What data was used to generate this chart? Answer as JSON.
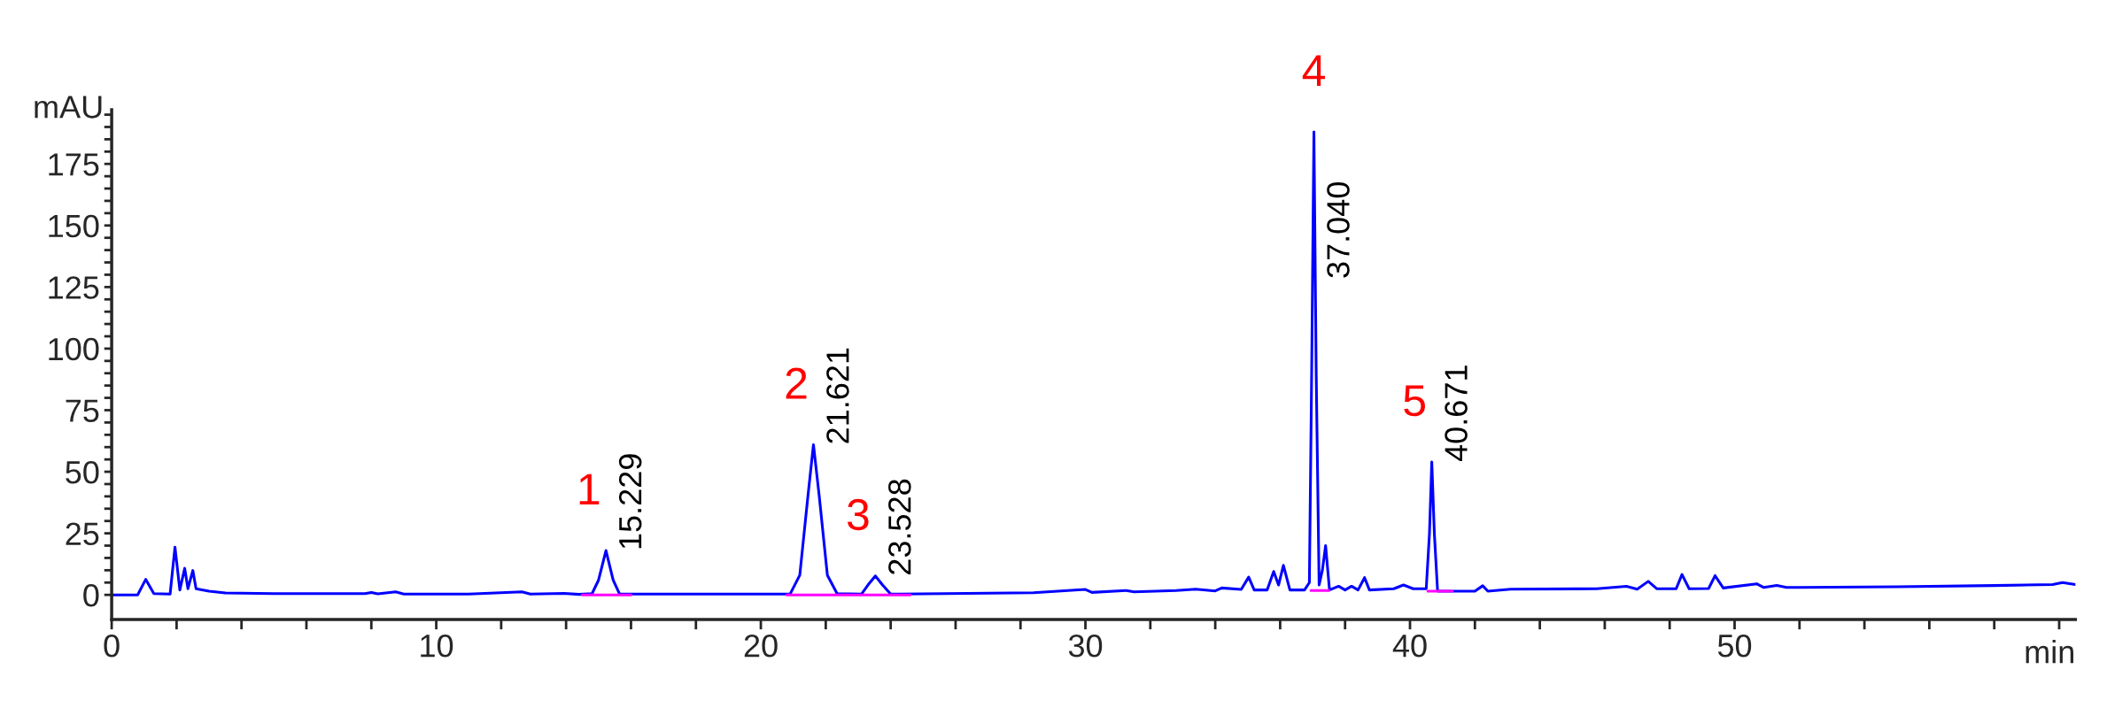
{
  "chart_data": {
    "type": "line",
    "xlabel": "min",
    "ylabel": "mAU",
    "xlim": [
      0,
      60.5
    ],
    "ylim": [
      -10,
      197
    ],
    "xticks": [
      0,
      {
        "value": 2,
        "label": null
      },
      {
        "value": 4,
        "label": null
      },
      {
        "value": 6,
        "label": null
      },
      {
        "value": 8,
        "label": null
      },
      10,
      {
        "value": 12,
        "label": null
      },
      {
        "value": 14,
        "label": null
      },
      {
        "value": 16,
        "label": null
      },
      {
        "value": 18,
        "label": null
      },
      20,
      {
        "value": 22,
        "label": null
      },
      {
        "value": 24,
        "label": null
      },
      {
        "value": 26,
        "label": null
      },
      {
        "value": 28,
        "label": null
      },
      30,
      {
        "value": 32,
        "label": null
      },
      {
        "value": 34,
        "label": null
      },
      {
        "value": 36,
        "label": null
      },
      {
        "value": 38,
        "label": null
      },
      40,
      {
        "value": 42,
        "label": null
      },
      {
        "value": 44,
        "label": null
      },
      {
        "value": 46,
        "label": null
      },
      {
        "value": 48,
        "label": null
      },
      50,
      {
        "value": 52,
        "label": null
      },
      {
        "value": 54,
        "label": null
      },
      {
        "value": 56,
        "label": null
      },
      {
        "value": 58,
        "label": null
      },
      {
        "value": 60,
        "label": null
      }
    ],
    "yticks": [
      0,
      {
        "value": 5,
        "label": null
      },
      {
        "value": 10,
        "label": null
      },
      {
        "value": 15,
        "label": null
      },
      {
        "value": 20,
        "label": null
      },
      25,
      {
        "value": 30,
        "label": null
      },
      {
        "value": 35,
        "label": null
      },
      {
        "value": 40,
        "label": null
      },
      {
        "value": 45,
        "label": null
      },
      50,
      {
        "value": 55,
        "label": null
      },
      {
        "value": 60,
        "label": null
      },
      {
        "value": 65,
        "label": null
      },
      {
        "value": 70,
        "label": null
      },
      75,
      {
        "value": 80,
        "label": null
      },
      {
        "value": 85,
        "label": null
      },
      {
        "value": 90,
        "label": null
      },
      {
        "value": 95,
        "label": null
      },
      100,
      {
        "value": 105,
        "label": null
      },
      {
        "value": 110,
        "label": null
      },
      {
        "value": 115,
        "label": null
      },
      {
        "value": 120,
        "label": null
      },
      125,
      {
        "value": 130,
        "label": null
      },
      {
        "value": 135,
        "label": null
      },
      {
        "value": 140,
        "label": null
      },
      {
        "value": 145,
        "label": null
      },
      150,
      {
        "value": 155,
        "label": null
      },
      {
        "value": 160,
        "label": null
      },
      {
        "value": 165,
        "label": null
      },
      {
        "value": 170,
        "label": null
      },
      175,
      {
        "value": 180,
        "label": null
      },
      {
        "value": 185,
        "label": null
      },
      {
        "value": 190,
        "label": null
      },
      {
        "value": 195,
        "label": null
      }
    ],
    "grid": false,
    "legend": false,
    "series": [
      {
        "color": "#0000ff",
        "x": [
          0,
          0.8,
          1.05,
          1.3,
          1.8,
          1.95,
          2.1,
          2.25,
          2.35,
          2.5,
          2.6,
          3.0,
          3.5,
          5,
          7.8,
          8.0,
          8.2,
          8.75,
          9.0,
          11,
          12.64,
          12.9,
          13.94,
          14.4,
          14.8,
          15.0,
          15.229,
          15.45,
          15.65,
          18,
          20.9,
          21.2,
          21.45,
          21.621,
          21.8,
          22.05,
          22.35,
          23.1,
          23.3,
          23.528,
          23.75,
          24.0,
          28.4,
          30,
          30.2,
          31.25,
          31.5,
          32.8,
          33.4,
          34.0,
          34.2,
          34.8,
          35.03,
          35.2,
          35.6,
          35.8,
          35.95,
          36.1,
          36.3,
          36.75,
          36.9,
          36.97,
          37.04,
          37.11,
          37.2,
          37.3,
          37.4,
          37.52,
          37.8,
          38.0,
          38.2,
          38.4,
          38.6,
          38.75,
          39.5,
          39.8,
          40.1,
          40.5,
          40.6,
          40.671,
          40.75,
          40.85,
          42.0,
          42.24,
          42.4,
          43.1,
          45.75,
          46.67,
          47.0,
          47.34,
          47.6,
          48.2,
          48.38,
          48.6,
          49.2,
          49.4,
          49.65,
          50.68,
          50.9,
          51.3,
          51.6,
          55,
          58,
          59.8,
          60.1,
          60.5
        ],
        "values": [
          0,
          0,
          6.3,
          0.5,
          0.3,
          19.4,
          2,
          10.8,
          2.5,
          9.9,
          2.5,
          1.5,
          0.8,
          0.5,
          0.5,
          1,
          0.4,
          1.2,
          0.3,
          0.3,
          1.2,
          0.3,
          0.6,
          0.2,
          0.5,
          6,
          18,
          6,
          0.3,
          0.3,
          0.3,
          8,
          40,
          61,
          40,
          8,
          0.5,
          0.3,
          4,
          7.7,
          4,
          0.3,
          0.9,
          2.2,
          1,
          1.8,
          1.2,
          1.8,
          2.3,
          1.6,
          2.8,
          2.2,
          7.2,
          2,
          2,
          9.5,
          4,
          12,
          2,
          2,
          5,
          90,
          188,
          90,
          4,
          10,
          20,
          2,
          3.5,
          2,
          3.5,
          2,
          7,
          2,
          2.5,
          4,
          2.5,
          2.5,
          25,
          54,
          25,
          1.5,
          1.5,
          3.7,
          1.5,
          2.3,
          2.5,
          3.5,
          2.3,
          5.5,
          2.5,
          2.5,
          8.3,
          2.5,
          2.6,
          7.8,
          2.8,
          4.5,
          3,
          3.8,
          3,
          3.3,
          3.8,
          4.2,
          5,
          4.2
        ]
      },
      {
        "color": "#ff00ff",
        "x": [
          14.5,
          16.0
        ],
        "values": [
          0,
          0
        ]
      },
      {
        "color": "#ff00ff",
        "x": [
          20.8,
          22.9,
          24.6
        ],
        "values": [
          0,
          0,
          0
        ]
      },
      {
        "color": "#ff00ff",
        "x": [
          36.95,
          37.5
        ],
        "values": [
          1.8,
          1.8
        ]
      },
      {
        "color": "#ff00ff",
        "x": [
          40.55,
          41.3
        ],
        "values": [
          1.5,
          1.5
        ]
      }
    ],
    "annotations": [
      {
        "text": "1",
        "x": 15.229,
        "y": 18
      },
      {
        "text": "15.229",
        "x": 15.229,
        "y": 18
      },
      {
        "text": "2",
        "x": 21.621,
        "y": 61
      },
      {
        "text": "21.621",
        "x": 21.621,
        "y": 61
      },
      {
        "text": "3",
        "x": 23.528,
        "y": 7.7
      },
      {
        "text": "23.528",
        "x": 23.528,
        "y": 7.7
      },
      {
        "text": "4",
        "x": 37.04,
        "y": 188
      },
      {
        "text": "37.040",
        "x": 37.04,
        "y": 188
      },
      {
        "text": "5",
        "x": 40.671,
        "y": 54
      },
      {
        "text": "40.671",
        "x": 40.671,
        "y": 54
      }
    ]
  }
}
